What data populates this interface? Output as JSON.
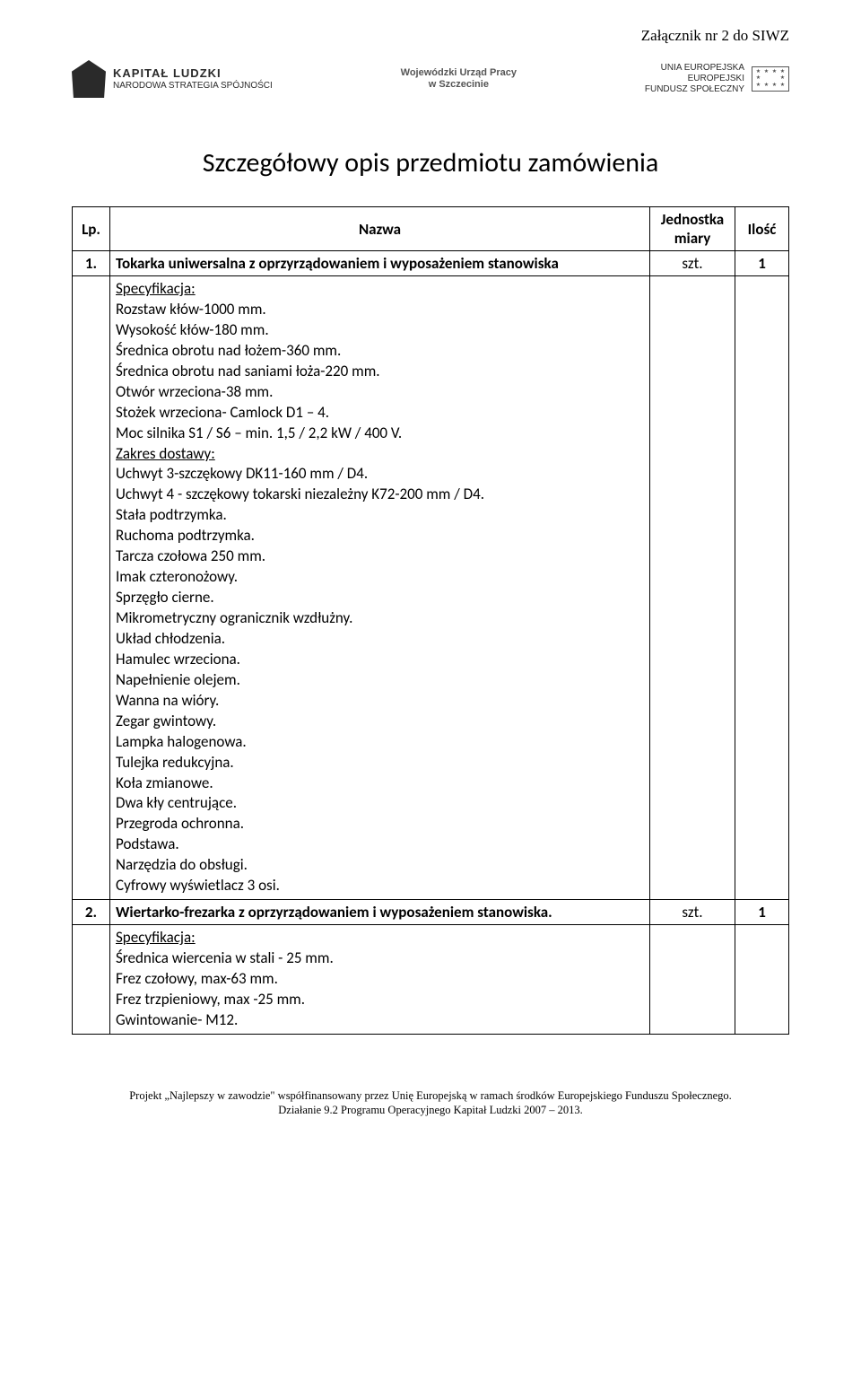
{
  "attachment": "Załącznik nr 2 do SIWZ",
  "logos": {
    "left_big": "KAPITAŁ LUDZKI",
    "left_small": "NARODOWA STRATEGIA SPÓJNOŚCI",
    "center_l1": "Wojewódzki Urząd Pracy",
    "center_l2": "w Szczecinie",
    "right_l1": "UNIA EUROPEJSKA",
    "right_l2": "EUROPEJSKI",
    "right_l3": "FUNDUSZ SPOŁECZNY"
  },
  "title": "Szczegółowy opis przedmiotu zamówienia",
  "headers": {
    "lp": "Lp.",
    "name": "Nazwa",
    "unit_l1": "Jednostka",
    "unit_l2": "miary",
    "qty": "Ilość"
  },
  "rows": {
    "r1": {
      "lp": "1.",
      "name": "Tokarka uniwersalna z oprzyrządowaniem i wyposażeniem stanowiska",
      "unit": "szt.",
      "qty": "1"
    },
    "r1_spec_label": "Specyfikacja:",
    "r1_spec_lines": [
      "Rozstaw kłów-1000 mm.",
      "Wysokość kłów-180 mm.",
      "Średnica obrotu nad łożem-360 mm.",
      "Średnica obrotu nad saniami łoża-220 mm.",
      "Otwór wrzeciona-38 mm.",
      "Stożek wrzeciona- Camlock D1 – 4.",
      "Moc silnika S1 / S6 – min. 1,5 / 2,2 kW / 400 V."
    ],
    "r1_scope_label": "Zakres dostawy:",
    "r1_scope_lines": [
      "Uchwyt 3-szczękowy DK11-160 mm / D4.",
      "Uchwyt 4 - szczękowy  tokarski niezależny K72-200 mm / D4.",
      "Stała podtrzymka.",
      "Ruchoma podtrzymka.",
      "Tarcza czołowa 250 mm.",
      "Imak czteronożowy.",
      "Sprzęgło cierne.",
      "Mikrometryczny ogranicznik wzdłużny.",
      "Układ chłodzenia.",
      "Hamulec wrzeciona.",
      "Napełnienie olejem.",
      "Wanna na wióry.",
      "Zegar gwintowy.",
      "Lampka halogenowa.",
      "Tulejka redukcyjna.",
      "Koła zmianowe.",
      "Dwa  kły centrujące.",
      "Przegroda ochronna.",
      "Podstawa.",
      "Narzędzia do obsługi.",
      "Cyfrowy wyświetlacz 3 osi."
    ],
    "r2": {
      "lp": "2.",
      "name": "Wiertarko-frezarka z oprzyrządowaniem i wyposażeniem stanowiska.",
      "unit": "szt.",
      "qty": "1"
    },
    "r2_spec_label": "Specyfikacja:",
    "r2_spec_lines": [
      "Średnica wiercenia w stali - 25 mm.",
      "Frez czołowy, max-63 mm.",
      " Frez trzpieniowy, max -25 mm.",
      "Gwintowanie- M12."
    ]
  },
  "footer": {
    "l1": "Projekt „Najlepszy w zawodzie\" współfinansowany przez Unię Europejską w ramach środków Europejskiego Funduszu Społecznego.",
    "l2": "Działanie 9.2 Programu Operacyjnego Kapitał Ludzki 2007 – 2013."
  }
}
